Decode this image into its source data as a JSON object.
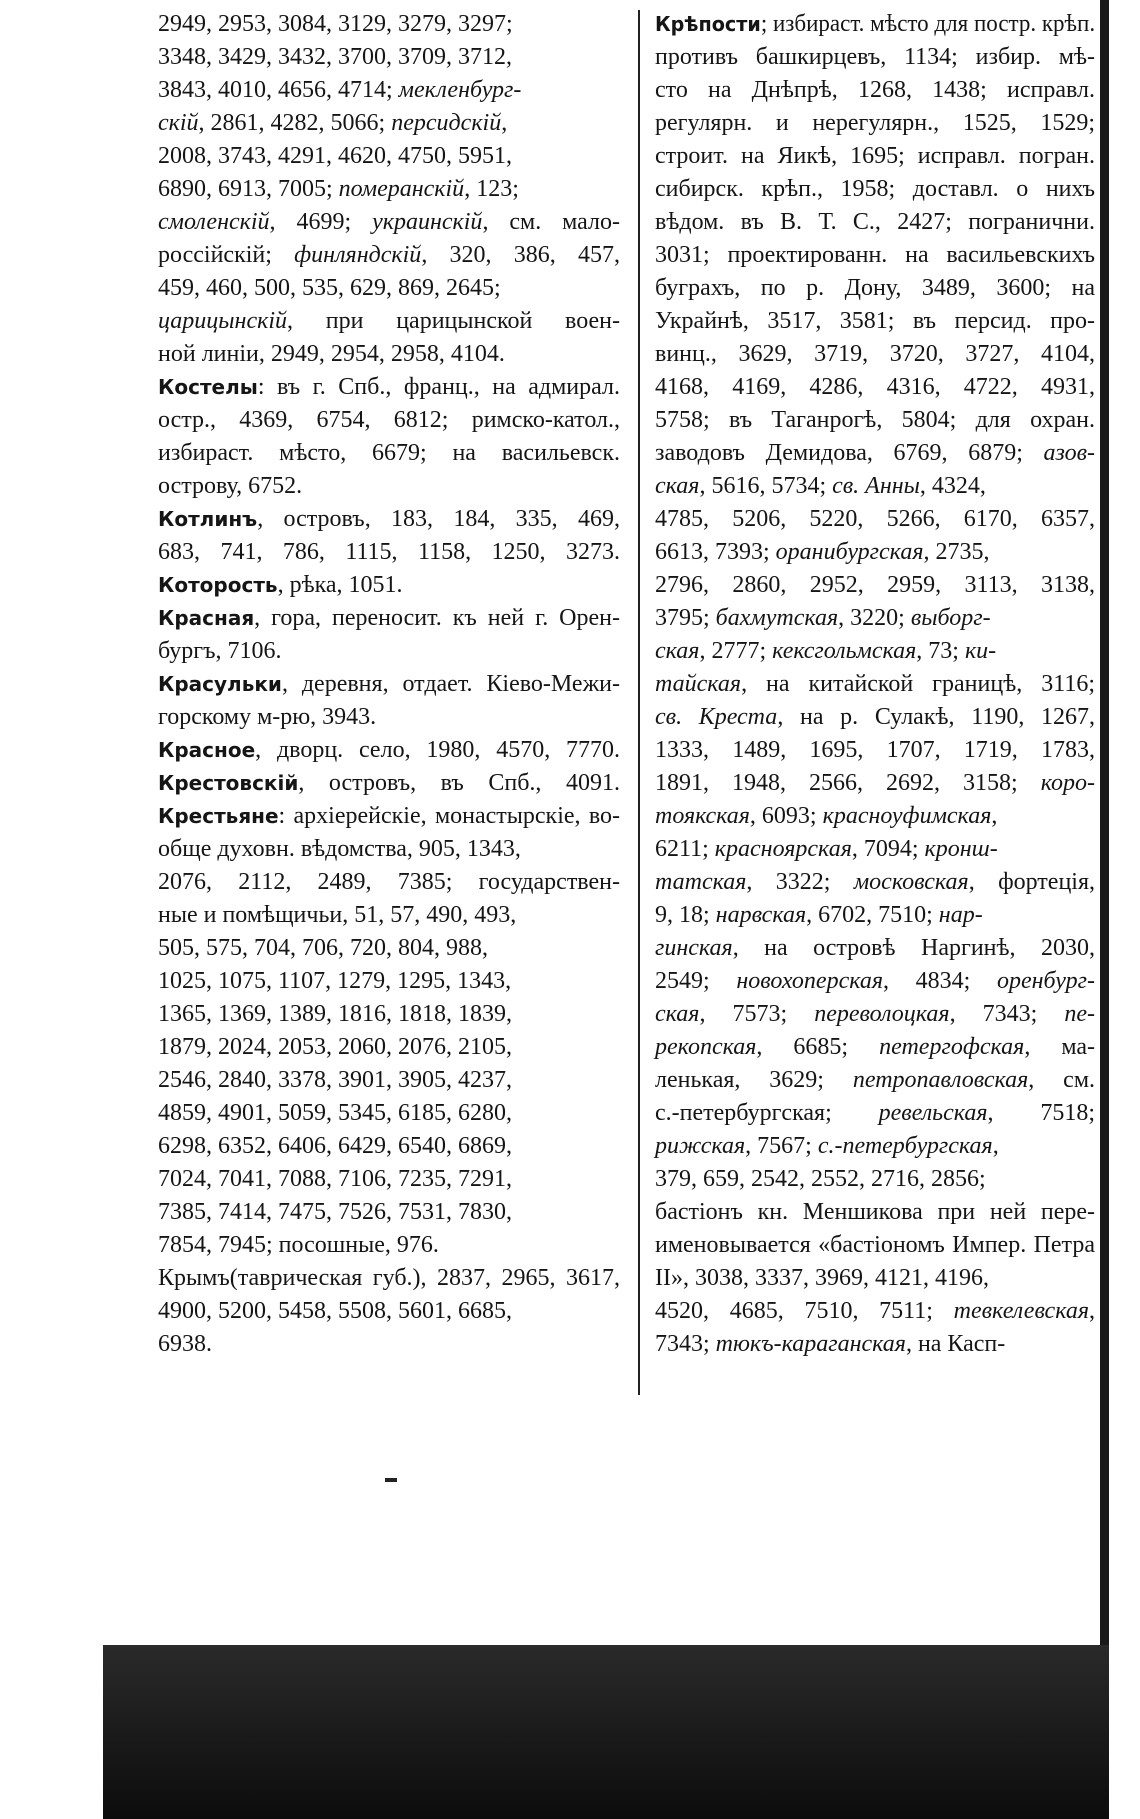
{
  "left": {
    "lines": [
      [
        "2949, 2953, 3084, 3129, 3279, 3297;"
      ],
      [
        "3348, 3429, 3432, 3700, 3709, 3712,"
      ],
      [
        "3843, 4010, 4656, 4714; ",
        {
          "text": "мекленбург-",
          "style": "italic"
        }
      ],
      [
        {
          "text": "скій",
          "style": "italic"
        },
        ", 2861, 4282, 5066; ",
        {
          "text": "персидскій",
          "style": "italic"
        },
        ","
      ],
      [
        "2008, 3743, 4291, 4620, 4750, 5951,"
      ],
      [
        "6890, 6913, 7005; ",
        {
          "text": "померанскій",
          "style": "italic"
        },
        ", 123;"
      ],
      [
        {
          "text": "смоленскій",
          "style": "italic"
        },
        ", 4699; ",
        {
          "text": "украинскій",
          "style": "italic"
        },
        ", см. мало-"
      ],
      [
        "россійскій; ",
        {
          "text": "финляндскій",
          "style": "italic"
        },
        ", 320, 386, 457,"
      ],
      [
        "459, 460, 500, 535, 629, 869, 2645;"
      ],
      [
        {
          "text": "царицынскій",
          "style": "italic"
        },
        ", при царицынской воен-"
      ],
      [
        "ной линіи, 2949, 2954, 2958, 4104."
      ],
      [
        {
          "text": "Костелы",
          "style": "bold"
        },
        ": въ г. Спб., франц., на адмирал."
      ],
      [
        "остр., 4369, 6754, 6812; римско-катол.,"
      ],
      [
        "избираст. мѣсто, 6679; на васильевск."
      ],
      [
        "острову, 6752."
      ],
      [
        {
          "text": "Котлинъ",
          "style": "bold"
        },
        ", островъ, 183, 184, 335, 469,"
      ],
      [
        "683, 741, 786, 1115, 1158, 1250, 3273."
      ],
      [
        {
          "text": "Которость",
          "style": "bold"
        },
        ", рѣка, 1051."
      ],
      [
        {
          "text": "Красная",
          "style": "bold"
        },
        ", гора, переносит. къ ней г. Орен-"
      ],
      [
        "бургъ, 7106."
      ],
      [
        {
          "text": "Красульки",
          "style": "bold"
        },
        ", деревня, отдает. Кіево-Межи-"
      ],
      [
        "горскому м-рю, 3943."
      ],
      [
        {
          "text": "Красное",
          "style": "bold"
        },
        ", дворц. село, 1980, 4570, 7770."
      ],
      [
        {
          "text": "Крестовскій",
          "style": "bold"
        },
        ", островъ, въ Спб., 4091."
      ],
      [
        {
          "text": "Крестьяне",
          "style": "bold"
        },
        ": архіерейскіе, монастырскіе, во-"
      ],
      [
        "обще духовн. вѣдомства, 905, 1343,"
      ],
      [
        "2076, 2112, 2489, 7385; государствен-"
      ],
      [
        "ные и помѣщичьи, 51, 57, 490, 493,"
      ],
      [
        "505, 575, 704, 706, 720, 804, 988,"
      ],
      [
        "1025, 1075, 1107, 1279, 1295, 1343,"
      ],
      [
        "1365, 1369, 1389, 1816, 1818, 1839,"
      ],
      [
        "1879, 2024, 2053, 2060, 2076, 2105,"
      ],
      [
        "2546, 2840, 3378, 3901, 3905, 4237,"
      ],
      [
        "4859, 4901, 5059, 5345, 6185, 6280,"
      ],
      [
        "6298, 6352, 6406, 6429, 6540, 6869,"
      ],
      [
        "7024, 7041, 7088, 7106, 7235, 7291,"
      ],
      [
        "7385, 7414, 7475, 7526, 7531, 7830,"
      ],
      [
        "7854, 7945; посошные, 976."
      ],
      [
        "Крымъ(таврическая губ.), 2837, 2965, 3617,"
      ],
      [
        "4900, 5200, 5458, 5508, 5601, 6685,"
      ],
      [
        "6938."
      ]
    ]
  },
  "right": {
    "lines": [
      [
        {
          "text": "Крѣпости",
          "style": "bold"
        },
        "; избираст. мѣсто для постр. крѣп."
      ],
      [
        "противъ башкирцевъ, 1134; избир. мѣ-"
      ],
      [
        "сто на Днѣпрѣ, 1268, 1438; исправл."
      ],
      [
        "регулярн. и нерегулярн., 1525, 1529;"
      ],
      [
        "строит. на Яикѣ, 1695; исправл. погран."
      ],
      [
        "сибирск. крѣп., 1958; доставл. о нихъ"
      ],
      [
        "вѣдом. въ В. Т. С., 2427; погранични."
      ],
      [
        "3031; проектированн. на васильевскихъ"
      ],
      [
        "буграхъ, по р. Дону, 3489, 3600; на"
      ],
      [
        "Украйнѣ, 3517, 3581; въ персид. про-"
      ],
      [
        "винц., 3629, 3719, 3720, 3727, 4104,"
      ],
      [
        "4168, 4169, 4286, 4316, 4722, 4931,"
      ],
      [
        "5758; въ Таганрогѣ, 5804; для охран."
      ],
      [
        "заводовъ Демидова, 6769, 6879; ",
        {
          "text": "азов-",
          "style": "italic"
        }
      ],
      [
        {
          "text": "ская",
          "style": "italic"
        },
        ", 5616, 5734; ",
        {
          "text": "св. Анны",
          "style": "italic"
        },
        ", 4324,"
      ],
      [
        "4785, 5206, 5220, 5266, 6170, 6357,"
      ],
      [
        "6613, 7393; ",
        {
          "text": "оранибургская",
          "style": "italic"
        },
        ", 2735,"
      ],
      [
        "2796, 2860, 2952, 2959, 3113, 3138,"
      ],
      [
        "3795; ",
        {
          "text": "бахмутская",
          "style": "italic"
        },
        ", 3220; ",
        {
          "text": "выборг-",
          "style": "italic"
        }
      ],
      [
        {
          "text": "ская",
          "style": "italic"
        },
        ", 2777; ",
        {
          "text": "кексгольмская",
          "style": "italic"
        },
        ", 73; ",
        {
          "text": "ки-",
          "style": "italic"
        }
      ],
      [
        {
          "text": "тайская",
          "style": "italic"
        },
        ", на китайской границѣ, 3116;"
      ],
      [
        {
          "text": "св. Креста",
          "style": "italic"
        },
        ", на р. Сулакѣ, 1190, 1267,"
      ],
      [
        "1333, 1489, 1695, 1707, 1719, 1783,"
      ],
      [
        "1891, 1948, 2566, 2692, 3158; ",
        {
          "text": "коро-",
          "style": "italic"
        }
      ],
      [
        {
          "text": "тоякская",
          "style": "italic"
        },
        ", 6093; ",
        {
          "text": "красноуфимская",
          "style": "italic"
        },
        ","
      ],
      [
        "6211; ",
        {
          "text": "красноярская",
          "style": "italic"
        },
        ", 7094; ",
        {
          "text": "кронш-",
          "style": "italic"
        }
      ],
      [
        {
          "text": "татская",
          "style": "italic"
        },
        ", 3322; ",
        {
          "text": "московская",
          "style": "italic"
        },
        ", фортеція,"
      ],
      [
        "9, 18; ",
        {
          "text": "нарвская",
          "style": "italic"
        },
        ", 6702, 7510; ",
        {
          "text": "нар-",
          "style": "italic"
        }
      ],
      [
        {
          "text": "гинская",
          "style": "italic"
        },
        ", на островѣ Наргинѣ, 2030,"
      ],
      [
        "2549; ",
        {
          "text": "новохоперская",
          "style": "italic"
        },
        ", 4834; ",
        {
          "text": "оренбург-",
          "style": "italic"
        }
      ],
      [
        {
          "text": "ская",
          "style": "italic"
        },
        ", 7573; ",
        {
          "text": "переволоцкая",
          "style": "italic"
        },
        ", 7343; ",
        {
          "text": "пе-",
          "style": "italic"
        }
      ],
      [
        {
          "text": "рекопская",
          "style": "italic"
        },
        ", 6685; ",
        {
          "text": "петергофская",
          "style": "italic"
        },
        ", ма-"
      ],
      [
        "ленькая, 3629; ",
        {
          "text": "петропавловская",
          "style": "italic"
        },
        ", см."
      ],
      [
        "с.-петербургская; ",
        {
          "text": "ревельская",
          "style": "italic"
        },
        ", 7518;"
      ],
      [
        {
          "text": "рижская",
          "style": "italic"
        },
        ", 7567; ",
        {
          "text": "с.-петербургская",
          "style": "italic"
        },
        ","
      ],
      [
        "379, 659, 2542, 2552, 2716, 2856;"
      ],
      [
        "бастіонъ кн. Меншикова при ней пере-"
      ],
      [
        "именовывается «бастіономъ Импер. Петра"
      ],
      [
        "II», 3038, 3337, 3969, 4121, 4196,"
      ],
      [
        "4520, 4685, 7510, 7511; ",
        {
          "text": "тевкелевская",
          "style": "italic"
        },
        ","
      ],
      [
        "7343; ",
        {
          "text": "тюкъ-караганская",
          "style": "italic"
        },
        ", на Касп-"
      ]
    ]
  }
}
